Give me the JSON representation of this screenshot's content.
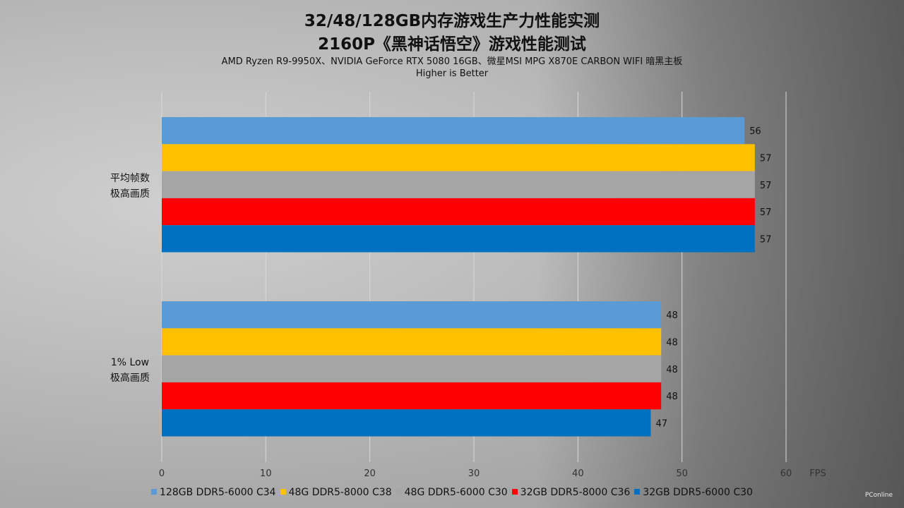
{
  "chart_data": {
    "type": "bar",
    "orientation": "horizontal",
    "title": "32/48/128GB内存游戏生产力性能实测",
    "subtitle": "2160P《黑神话悟空》游戏性能测试",
    "note1": "AMD Ryzen R9-9950X、NVIDIA GeForce RTX 5080 16GB、微星MSI MPG X870E CARBON WIFI 暗黑主板",
    "note2": "Higher is Better",
    "xlabel": "FPS",
    "xlim": [
      0,
      60
    ],
    "xticks": [
      "0",
      "10",
      "20",
      "30",
      "40",
      "50",
      "60"
    ],
    "grid": true,
    "legend_position": "bottom",
    "categories": [
      [
        "平均帧数",
        "极高画质"
      ],
      [
        "1% Low",
        "极高画质"
      ]
    ],
    "series": [
      {
        "name": "128GB DDR5-6000 C34",
        "color": "#5b9bd5",
        "values": [
          56,
          48
        ]
      },
      {
        "name": "48G DDR5-8000 C38",
        "color": "#ffc000",
        "values": [
          57,
          48
        ]
      },
      {
        "name": "48G DDR5-6000 C30",
        "color": "#a5a5a5",
        "values": [
          57,
          48
        ]
      },
      {
        "name": "32GB DDR5-8000 C36",
        "color": "#ff0000",
        "values": [
          57,
          48
        ]
      },
      {
        "name": "32GB DDR5-6000 C30",
        "color": "#0070c0",
        "values": [
          57,
          47
        ]
      }
    ]
  },
  "watermark": "PConline"
}
